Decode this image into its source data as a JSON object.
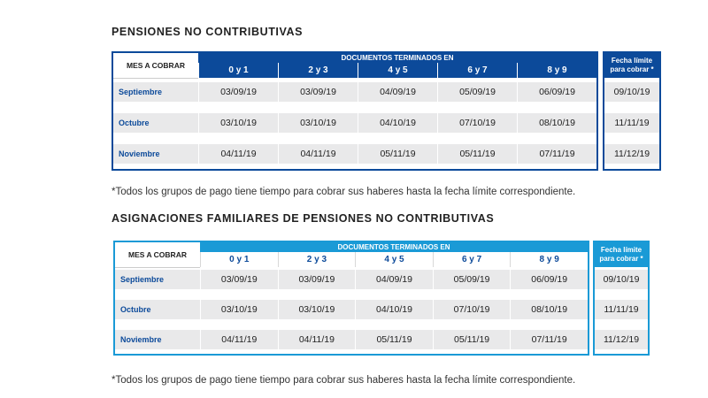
{
  "section1": {
    "title": "PENSIONES NO CONTRIBUTIVAS",
    "note": "*Todos los grupos de pago tiene tiempo para cobrar sus haberes hasta la fecha límite correspondiente."
  },
  "section2": {
    "title": "ASIGNACIONES FAMILIARES DE PENSIONES NO CONTRIBUTIVAS",
    "note": "*Todos los grupos de pago tiene tiempo para cobrar sus haberes hasta la fecha límite correspondiente."
  },
  "table": {
    "mes_header": "MES A COBRAR",
    "doc_header": "DOCUMENTOS TERMINADOS EN",
    "columns": [
      "0 y 1",
      "2 y 3",
      "4 y 5",
      "6 y 7",
      "8 y 9"
    ],
    "limit_header_line1": "Fecha límite",
    "limit_header_line2": "para cobrar *",
    "rows": [
      {
        "mes": "Septiembre",
        "dates": [
          "03/09/19",
          "03/09/19",
          "04/09/19",
          "05/09/19",
          "06/09/19"
        ],
        "limit": "09/10/19"
      },
      {
        "mes": "Octubre",
        "dates": [
          "03/10/19",
          "03/10/19",
          "04/10/19",
          "07/10/19",
          "08/10/19"
        ],
        "limit": "11/11/19"
      },
      {
        "mes": "Noviembre",
        "dates": [
          "04/11/19",
          "04/11/19",
          "05/11/19",
          "05/11/19",
          "07/11/19"
        ],
        "limit": "11/12/19"
      }
    ]
  },
  "colors": {
    "dark_blue": "#0c4a9a",
    "light_blue": "#1a9ad6",
    "row_gray": "#e9e9ea"
  }
}
